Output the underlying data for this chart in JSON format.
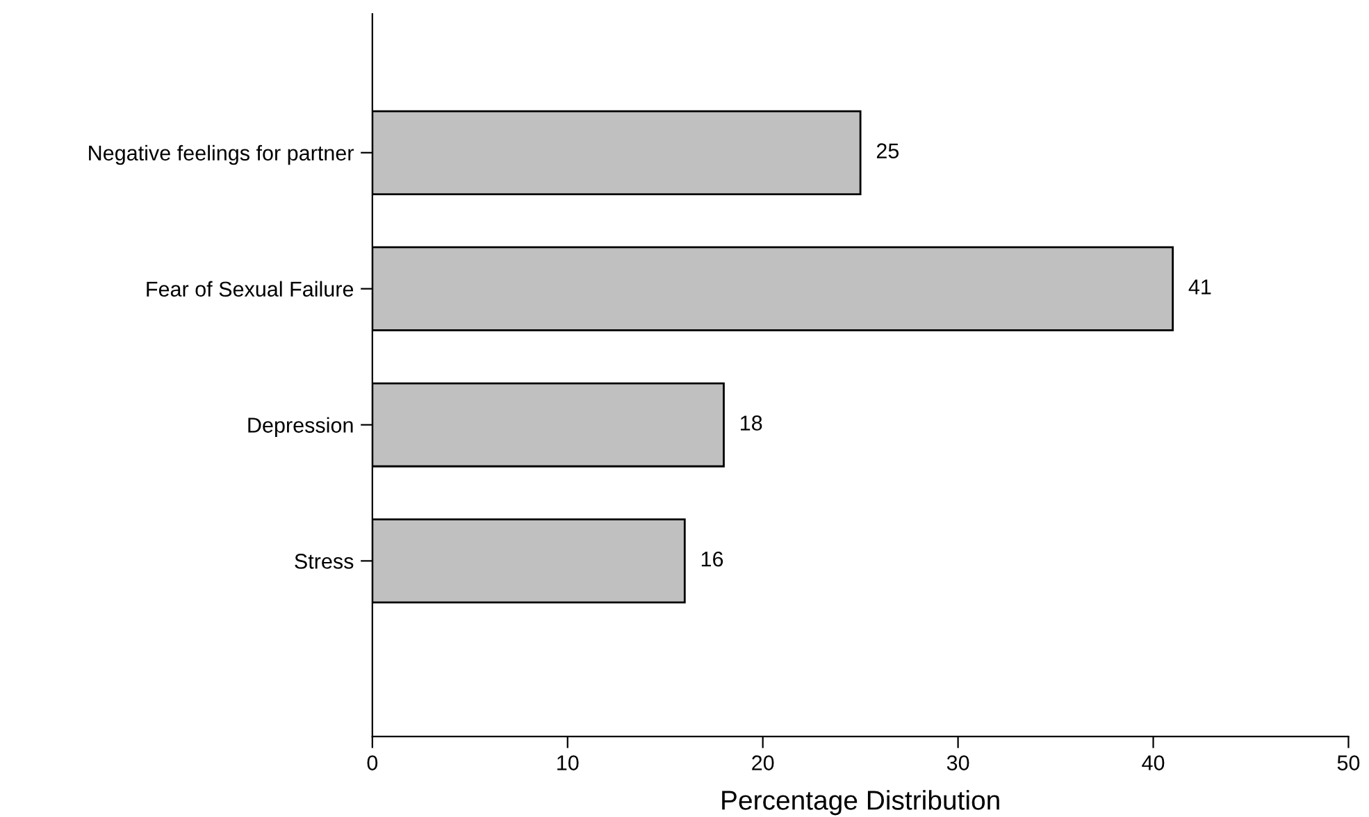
{
  "chart_data": {
    "type": "bar",
    "orientation": "horizontal",
    "xlabel": "Percentage Distribution",
    "categories": [
      "Negative feelings for partner",
      "Fear of Sexual Failure",
      "Depression",
      "Stress"
    ],
    "values": [
      25,
      41,
      18,
      16
    ],
    "color": "#c0c0c0",
    "xlim": [
      0,
      50
    ],
    "xticks": [
      0,
      10,
      20,
      30,
      40,
      50
    ],
    "data_labels": true,
    "grid": false,
    "legend": false
  }
}
